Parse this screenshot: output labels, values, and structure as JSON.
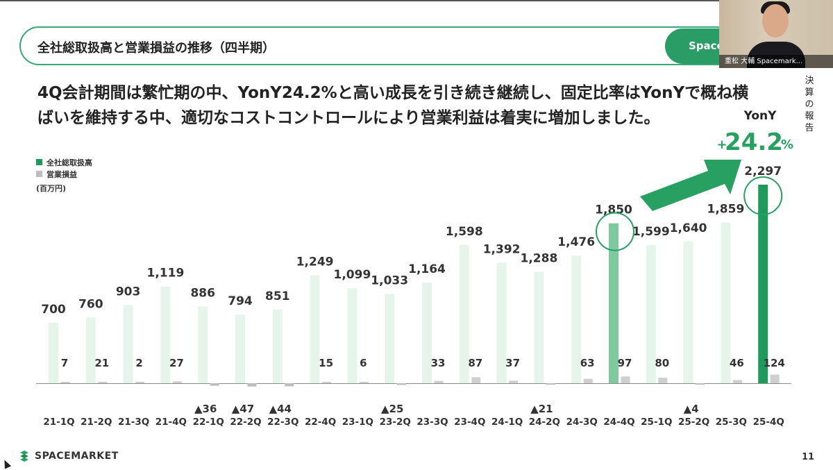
{
  "slide": {
    "title": "全社総取扱高と営業損益の推移（四半期）",
    "brand_label": "Spacemark",
    "headline": [
      "4Q会計期間は繁忙期の中、YonY24.2%と高い成長を引き続き継続し、固定比率はYonYで概ね横",
      "ばいを維持する中、適切なコストコントロールにより営業利益は着実に増加しました。"
    ],
    "side_note": "決算の報告",
    "footer_brand": "SPACEMARKET",
    "page_number": "11"
  },
  "video": {
    "caption": "重松 大輔 Spacemark..."
  },
  "chart_data": {
    "type": "bar",
    "categories": [
      "21-1Q",
      "21-2Q",
      "21-3Q",
      "21-4Q",
      "22-1Q",
      "22-2Q",
      "22-3Q",
      "22-4Q",
      "23-1Q",
      "23-2Q",
      "23-3Q",
      "23-4Q",
      "24-1Q",
      "24-2Q",
      "24-3Q",
      "24-4Q",
      "25-1Q",
      "25-2Q",
      "25-3Q",
      "25-4Q"
    ],
    "series": [
      {
        "name": "全社総取扱高",
        "values": [
          700,
          760,
          903,
          1119,
          886,
          794,
          851,
          1249,
          1099,
          1033,
          1164,
          1598,
          1392,
          1288,
          1476,
          1850,
          1599,
          1640,
          1859,
          2297
        ],
        "labels": [
          "700",
          "760",
          "903",
          "1,119",
          "886",
          "794",
          "851",
          "1,249",
          "1,099",
          "1,033",
          "1,164",
          "1,598",
          "1,392",
          "1,288",
          "1,476",
          "1,850",
          "1,599",
          "1,640",
          "1,859",
          "2,297"
        ]
      },
      {
        "name": "営業損益",
        "values": [
          7,
          21,
          2,
          27,
          -36,
          -47,
          -44,
          15,
          6,
          -25,
          33,
          87,
          37,
          -21,
          63,
          97,
          80,
          -4,
          46,
          124
        ],
        "labels": [
          "7",
          "21",
          "2",
          "27",
          "▲36",
          "▲47",
          "▲44",
          "15",
          "6",
          "▲25",
          "33",
          "87",
          "37",
          "▲21",
          "63",
          "97",
          "80",
          "▲4",
          "46",
          "124"
        ]
      }
    ],
    "unit": "(百万円)",
    "highlight": [
      "24-4Q",
      "25-4Q"
    ],
    "annotation": {
      "label": "YonY",
      "value": "+24.2%",
      "value_main": "24.2",
      "value_sign": "+",
      "value_pct": "%"
    },
    "colors": {
      "gmv_light": "#e6f5ec",
      "gmv_mid": "#7fc9a1",
      "gmv_dark": "#1f9a5c",
      "op": "#cfcfcf",
      "op_dark": "#bdbdbd",
      "accent": "#27a061",
      "legend_op": "#bdbdbd"
    }
  }
}
